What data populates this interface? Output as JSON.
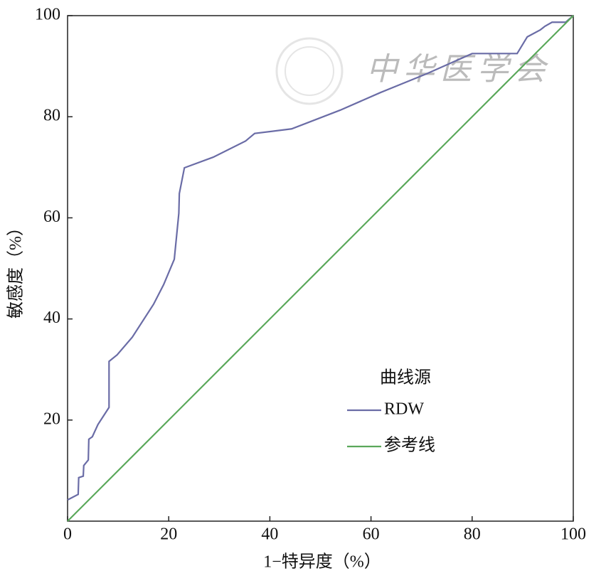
{
  "chart_data": {
    "type": "line",
    "xlabel": "1−特异度（%）",
    "ylabel": "敏感度（%）",
    "watermark": "中华医学会",
    "legend_title": "曲线源",
    "legend_position": "lower right",
    "xlim": [
      0,
      100
    ],
    "ylim": [
      0,
      100
    ],
    "xticks": [
      0,
      20,
      40,
      60,
      80,
      100
    ],
    "yticks": [
      20,
      40,
      60,
      80,
      100
    ],
    "series": [
      {
        "name": "RDW",
        "color": "#6a6ca6",
        "x": [
          0,
          2.1,
          2.2,
          3.1,
          3.2,
          4.1,
          4.2,
          4.9,
          6.0,
          8.2,
          8.2,
          9.8,
          12.8,
          17.0,
          19.0,
          21.1,
          22.0,
          22.1,
          23.1,
          28.8,
          35.2,
          37.0,
          44.3,
          53.9,
          61.9,
          71.0,
          80.0,
          88.9,
          90.9,
          93.5,
          94.4,
          95.8,
          98.5,
          100
        ],
        "values": [
          4.2,
          5.3,
          8.6,
          8.9,
          11.0,
          12.1,
          16.2,
          16.7,
          19.1,
          22.5,
          31.6,
          32.9,
          36.4,
          42.9,
          46.8,
          51.8,
          60.9,
          64.8,
          69.9,
          72.0,
          75.2,
          76.7,
          77.6,
          81.3,
          84.8,
          88.5,
          92.5,
          92.5,
          95.8,
          97.2,
          97.9,
          98.7,
          98.7,
          100
        ]
      },
      {
        "name": "参考线",
        "color": "#5aa85a",
        "x": [
          0,
          100
        ],
        "values": [
          0,
          100
        ]
      }
    ]
  }
}
